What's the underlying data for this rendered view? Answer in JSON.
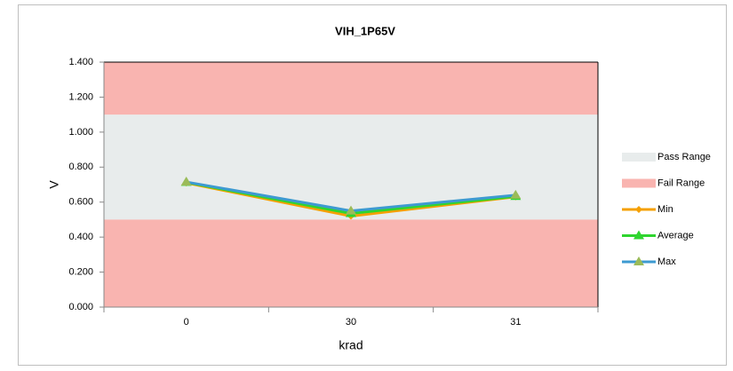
{
  "chart_data": {
    "type": "line",
    "title": "VIH_1P65V",
    "x_label": "krad",
    "y_label": "V",
    "categories": [
      "0",
      "30",
      "31"
    ],
    "ylim": [
      0,
      1.4
    ],
    "yticks": [
      {
        "value": 0,
        "label": "0.000"
      },
      {
        "value": 0.2,
        "label": "0.200"
      },
      {
        "value": 0.4,
        "label": "0.400"
      },
      {
        "value": 0.6,
        "label": "0.600"
      },
      {
        "value": 0.8,
        "label": "0.800"
      },
      {
        "value": 1.0,
        "label": "1.000"
      },
      {
        "value": 1.2,
        "label": "1.200"
      },
      {
        "value": 1.4,
        "label": "1.400"
      }
    ],
    "bands": [
      {
        "name": "Pass Range",
        "color": "#e8ecec",
        "ranges": [
          [
            0.5,
            1.1
          ]
        ]
      },
      {
        "name": "Fail Range",
        "color": "#f9b4b0",
        "ranges": [
          [
            0,
            0.5
          ],
          [
            1.1,
            1.4
          ]
        ]
      }
    ],
    "series": [
      {
        "name": "Min",
        "color": "#f5a000",
        "marker": "diamond",
        "marker_color": "#f5a000",
        "values": [
          0.71,
          0.52,
          0.63
        ]
      },
      {
        "name": "Average",
        "color": "#2fd52f",
        "marker": "triangle",
        "marker_color": "#2fd52f",
        "values": [
          0.713,
          0.535,
          0.633
        ]
      },
      {
        "name": "Max",
        "color": "#3d9ad1",
        "marker": "triangle",
        "marker_color": "#9bbb59",
        "values": [
          0.715,
          0.55,
          0.64
        ]
      }
    ]
  }
}
